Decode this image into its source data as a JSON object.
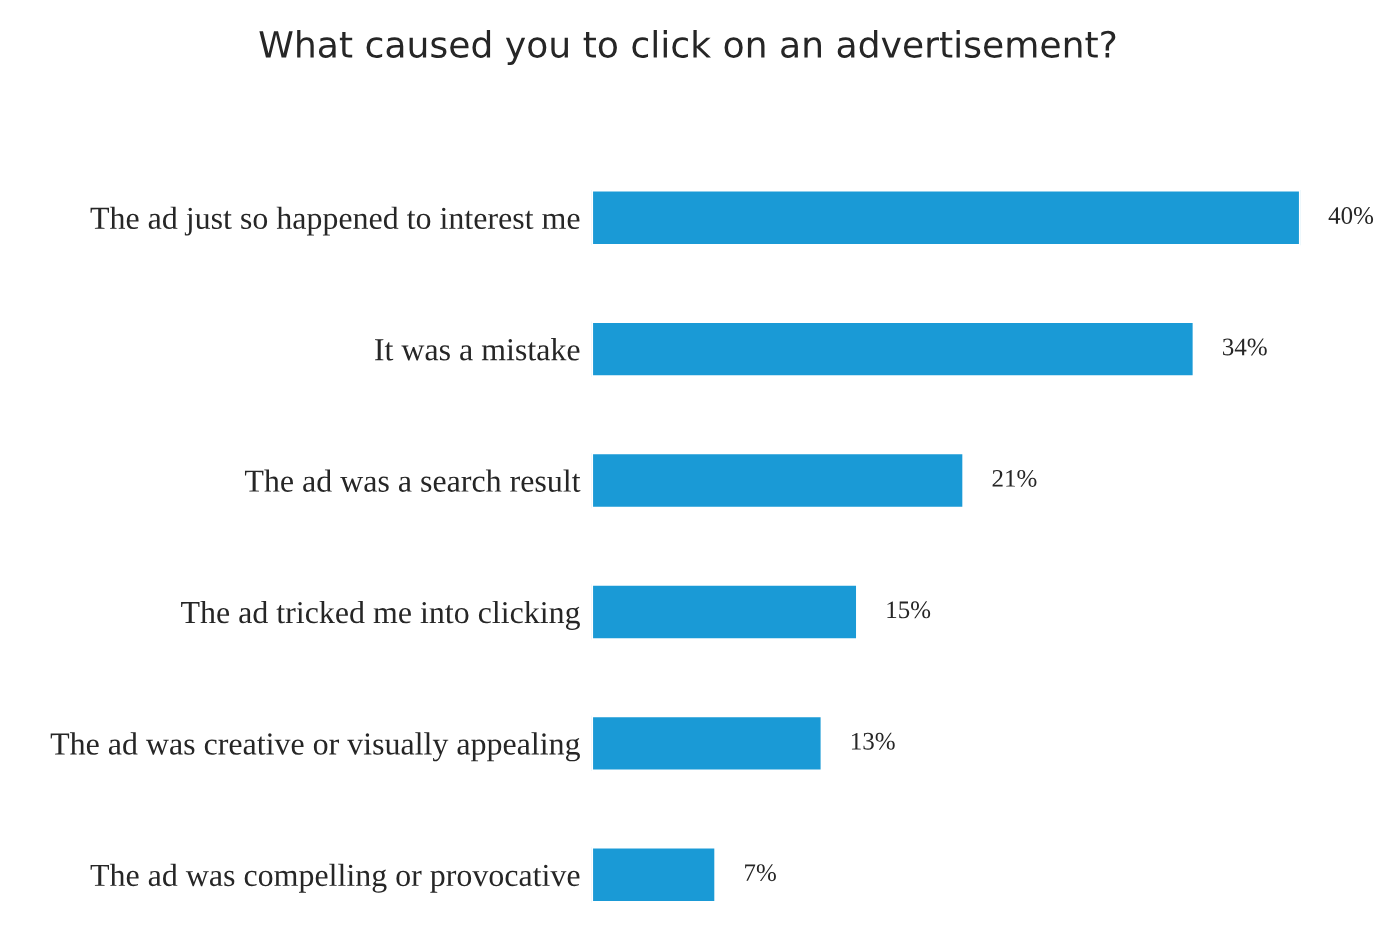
{
  "chart_data": {
    "type": "bar",
    "orientation": "horizontal",
    "title": "What caused you to click on an advertisement?",
    "categories": [
      "The ad just so happened to interest me",
      "It was a mistake",
      "The ad was a search result",
      "The ad tricked me into clicking",
      "The ad was creative or visually appealing",
      "The ad was compelling or provocative"
    ],
    "values": [
      40,
      34,
      21,
      15,
      13,
      7
    ],
    "value_labels": [
      "40%",
      "34%",
      "21%",
      "15%",
      "13%",
      "7%"
    ],
    "color": "#1a9ad6",
    "grid": false,
    "legend": false
  }
}
